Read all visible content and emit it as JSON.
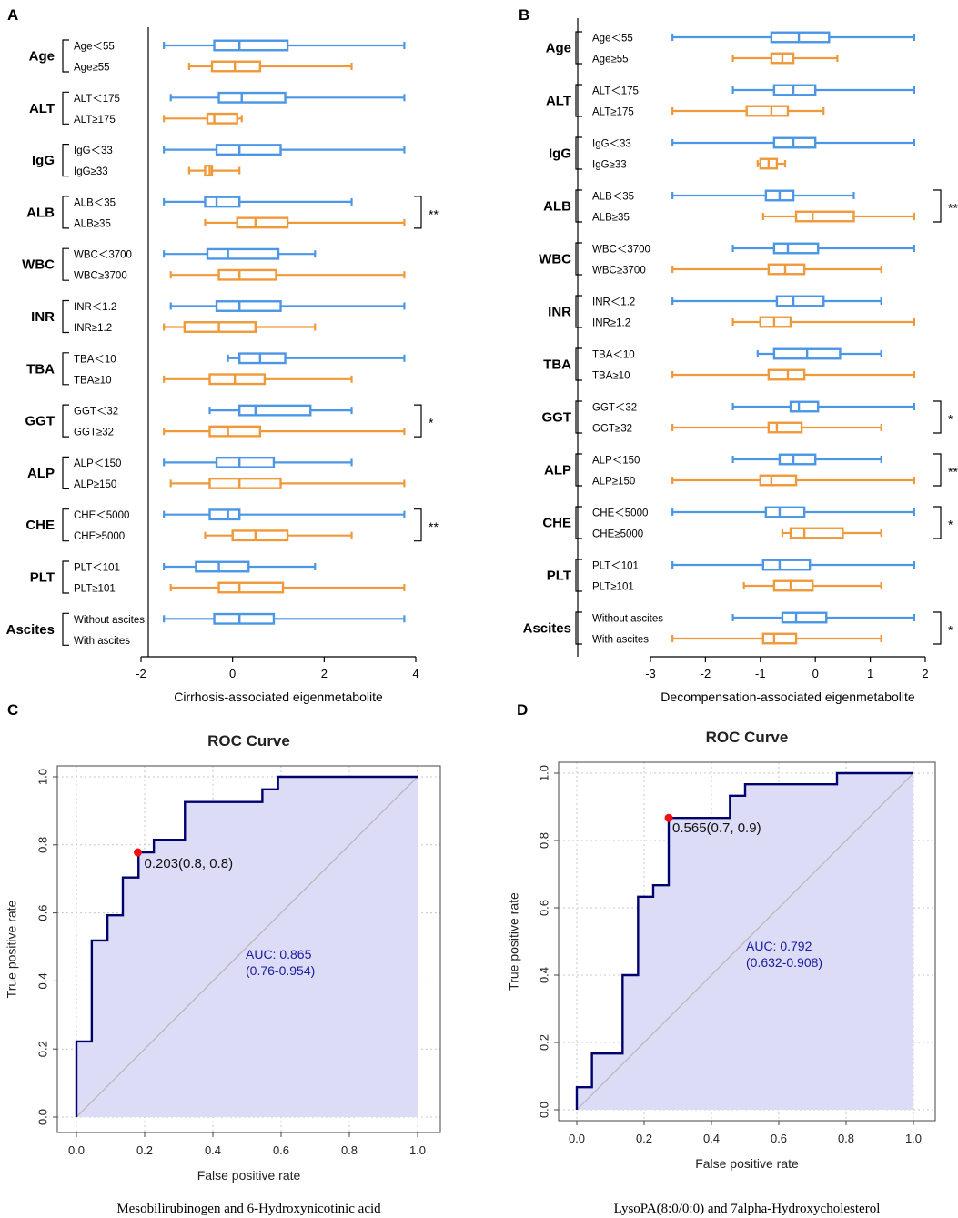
{
  "colors": {
    "group1": "#4c96e6",
    "group2": "#f0993a",
    "roc_line": "#00006e",
    "roc_fill": "#dcdcf6",
    "cut_point": "#ee1111"
  },
  "chart_data": [
    {
      "id": "A",
      "type": "boxplot",
      "panel_label": "A",
      "xlabel": "Cirrhosis-associated eigenmetabolite",
      "xlim": [
        -2,
        4
      ],
      "xticks": [
        -2,
        0,
        2,
        4
      ],
      "variables": [
        {
          "name": "Age",
          "groups": [
            {
              "label": "Age＜55",
              "stats": [
                -1.5,
                -0.4,
                0.15,
                1.2,
                3.75
              ]
            },
            {
              "label": "Age≥55",
              "stats": [
                -0.95,
                -0.45,
                0.05,
                0.6,
                2.6
              ]
            }
          ],
          "sig": ""
        },
        {
          "name": "ALT",
          "groups": [
            {
              "label": "ALT＜175",
              "stats": [
                -1.35,
                -0.3,
                0.2,
                1.15,
                3.75
              ]
            },
            {
              "label": "ALT≥175",
              "stats": [
                -1.5,
                -0.55,
                -0.4,
                0.1,
                0.2
              ]
            }
          ],
          "sig": ""
        },
        {
          "name": "IgG",
          "groups": [
            {
              "label": "IgG＜33",
              "stats": [
                -1.5,
                -0.35,
                0.15,
                1.05,
                3.75
              ]
            },
            {
              "label": "IgG≥33",
              "stats": [
                -0.95,
                -0.6,
                -0.5,
                -0.45,
                0.15
              ]
            }
          ],
          "sig": ""
        },
        {
          "name": "ALB",
          "groups": [
            {
              "label": "ALB＜35",
              "stats": [
                -1.5,
                -0.6,
                -0.35,
                0.15,
                2.6
              ]
            },
            {
              "label": "ALB≥35",
              "stats": [
                -0.6,
                0.1,
                0.5,
                1.2,
                3.75
              ]
            }
          ],
          "sig": "**"
        },
        {
          "name": "WBC",
          "groups": [
            {
              "label": "WBC＜3700",
              "stats": [
                -1.5,
                -0.55,
                -0.1,
                1.0,
                1.8
              ]
            },
            {
              "label": "WBC≥3700",
              "stats": [
                -1.35,
                -0.3,
                0.15,
                0.95,
                3.75
              ]
            }
          ],
          "sig": ""
        },
        {
          "name": "INR",
          "groups": [
            {
              "label": "INR＜1.2",
              "stats": [
                -1.35,
                -0.35,
                0.15,
                1.05,
                3.75
              ]
            },
            {
              "label": "INR≥1.2",
              "stats": [
                -1.5,
                -1.05,
                -0.3,
                0.5,
                1.8
              ]
            }
          ],
          "sig": ""
        },
        {
          "name": "TBA",
          "groups": [
            {
              "label": "TBA＜10",
              "stats": [
                -0.1,
                0.15,
                0.6,
                1.15,
                3.75
              ]
            },
            {
              "label": "TBA≥10",
              "stats": [
                -1.5,
                -0.5,
                0.05,
                0.7,
                2.6
              ]
            }
          ],
          "sig": ""
        },
        {
          "name": "GGT",
          "groups": [
            {
              "label": "GGT＜32",
              "stats": [
                -0.5,
                0.15,
                0.5,
                1.7,
                2.6
              ]
            },
            {
              "label": "GGT≥32",
              "stats": [
                -1.5,
                -0.5,
                -0.1,
                0.6,
                3.75
              ]
            }
          ],
          "sig": "*"
        },
        {
          "name": "ALP",
          "groups": [
            {
              "label": "ALP＜150",
              "stats": [
                -1.5,
                -0.35,
                0.15,
                0.9,
                2.6
              ]
            },
            {
              "label": "ALP≥150",
              "stats": [
                -1.35,
                -0.5,
                0.15,
                1.05,
                3.75
              ]
            }
          ],
          "sig": ""
        },
        {
          "name": "CHE",
          "groups": [
            {
              "label": "CHE＜5000",
              "stats": [
                -1.5,
                -0.5,
                -0.1,
                0.15,
                3.75
              ]
            },
            {
              "label": "CHE≥5000",
              "stats": [
                -0.6,
                0.0,
                0.5,
                1.2,
                2.6
              ]
            }
          ],
          "sig": "**"
        },
        {
          "name": "PLT",
          "groups": [
            {
              "label": "PLT＜101",
              "stats": [
                -1.5,
                -0.8,
                -0.3,
                0.35,
                1.8
              ]
            },
            {
              "label": "PLT≥101",
              "stats": [
                -1.35,
                -0.3,
                0.15,
                1.1,
                3.75
              ]
            }
          ],
          "sig": ""
        },
        {
          "name": "Ascites",
          "groups": [
            {
              "label": "Without ascites",
              "stats": [
                -1.5,
                -0.4,
                0.15,
                0.9,
                3.75
              ]
            },
            {
              "label": "With ascites",
              "stats": null
            }
          ],
          "sig": ""
        }
      ]
    },
    {
      "id": "B",
      "type": "boxplot",
      "panel_label": "B",
      "xlabel": "Decompensation-associated eigenmetabolite",
      "xlim": [
        -3,
        2
      ],
      "xticks": [
        -3,
        -2,
        -1,
        0,
        1,
        2
      ],
      "variables": [
        {
          "name": "Age",
          "groups": [
            {
              "label": "Age＜55",
              "stats": [
                -2.6,
                -0.8,
                -0.3,
                0.25,
                1.8
              ]
            },
            {
              "label": "Age≥55",
              "stats": [
                -1.5,
                -0.8,
                -0.6,
                -0.4,
                0.4
              ]
            }
          ],
          "sig": ""
        },
        {
          "name": "ALT",
          "groups": [
            {
              "label": "ALT＜175",
              "stats": [
                -1.5,
                -0.75,
                -0.4,
                0.0,
                1.8
              ]
            },
            {
              "label": "ALT≥175",
              "stats": [
                -2.6,
                -1.25,
                -0.8,
                -0.5,
                0.15
              ]
            }
          ],
          "sig": ""
        },
        {
          "name": "IgG",
          "groups": [
            {
              "label": "IgG＜33",
              "stats": [
                -2.6,
                -0.75,
                -0.4,
                0.0,
                1.8
              ]
            },
            {
              "label": "IgG≥33",
              "stats": [
                -1.05,
                -1.0,
                -0.85,
                -0.7,
                -0.55
              ]
            }
          ],
          "sig": ""
        },
        {
          "name": "ALB",
          "groups": [
            {
              "label": "ALB＜35",
              "stats": [
                -2.6,
                -0.9,
                -0.65,
                -0.4,
                0.7
              ]
            },
            {
              "label": "ALB≥35",
              "stats": [
                -0.95,
                -0.35,
                -0.05,
                0.7,
                1.8
              ]
            }
          ],
          "sig": "**"
        },
        {
          "name": "WBC",
          "groups": [
            {
              "label": "WBC＜3700",
              "stats": [
                -1.5,
                -0.75,
                -0.5,
                0.05,
                1.8
              ]
            },
            {
              "label": "WBC≥3700",
              "stats": [
                -2.6,
                -0.85,
                -0.55,
                -0.2,
                1.2
              ]
            }
          ],
          "sig": ""
        },
        {
          "name": "INR",
          "groups": [
            {
              "label": "INR＜1.2",
              "stats": [
                -2.6,
                -0.7,
                -0.4,
                0.15,
                1.2
              ]
            },
            {
              "label": "INR≥1.2",
              "stats": [
                -1.5,
                -1.0,
                -0.75,
                -0.45,
                1.8
              ]
            }
          ],
          "sig": ""
        },
        {
          "name": "TBA",
          "groups": [
            {
              "label": "TBA＜10",
              "stats": [
                -1.05,
                -0.75,
                -0.15,
                0.45,
                1.2
              ]
            },
            {
              "label": "TBA≥10",
              "stats": [
                -2.6,
                -0.85,
                -0.5,
                -0.2,
                1.8
              ]
            }
          ],
          "sig": ""
        },
        {
          "name": "GGT",
          "groups": [
            {
              "label": "GGT＜32",
              "stats": [
                -1.5,
                -0.45,
                -0.3,
                0.05,
                1.8
              ]
            },
            {
              "label": "GGT≥32",
              "stats": [
                -2.6,
                -0.85,
                -0.7,
                -0.25,
                1.2
              ]
            }
          ],
          "sig": "*"
        },
        {
          "name": "ALP",
          "groups": [
            {
              "label": "ALP＜150",
              "stats": [
                -1.5,
                -0.65,
                -0.4,
                0.0,
                1.2
              ]
            },
            {
              "label": "ALP≥150",
              "stats": [
                -2.6,
                -1.0,
                -0.8,
                -0.35,
                1.8
              ]
            }
          ],
          "sig": "**"
        },
        {
          "name": "CHE",
          "groups": [
            {
              "label": "CHE＜5000",
              "stats": [
                -2.6,
                -0.9,
                -0.65,
                -0.2,
                1.8
              ]
            },
            {
              "label": "CHE≥5000",
              "stats": [
                -0.6,
                -0.45,
                -0.2,
                0.5,
                1.2
              ]
            }
          ],
          "sig": "*"
        },
        {
          "name": "PLT",
          "groups": [
            {
              "label": "PLT＜101",
              "stats": [
                -2.6,
                -0.95,
                -0.65,
                -0.1,
                1.8
              ]
            },
            {
              "label": "PLT≥101",
              "stats": [
                -1.3,
                -0.75,
                -0.45,
                -0.05,
                1.2
              ]
            }
          ],
          "sig": ""
        },
        {
          "name": "Ascites",
          "groups": [
            {
              "label": "Without ascites",
              "stats": [
                -1.5,
                -0.6,
                -0.35,
                0.2,
                1.8
              ]
            },
            {
              "label": "With ascites",
              "stats": [
                -2.6,
                -0.95,
                -0.75,
                -0.35,
                1.2
              ]
            }
          ],
          "sig": "*"
        }
      ]
    },
    {
      "id": "C",
      "type": "line",
      "panel_label": "C",
      "title": "ROC Curve",
      "xlabel": "False positive rate",
      "ylabel": "True positive rate",
      "xlim": [
        0,
        1
      ],
      "ylim": [
        0,
        1
      ],
      "xticks": [
        "0.0",
        "0.2",
        "0.4",
        "0.6",
        "0.8",
        "1.0"
      ],
      "yticks": [
        "0.0",
        "0.2",
        "0.4",
        "0.6",
        "0.8",
        "1.0"
      ],
      "roc_points": [
        [
          0,
          0
        ],
        [
          0,
          0.222
        ],
        [
          0.045,
          0.222
        ],
        [
          0.045,
          0.519
        ],
        [
          0.091,
          0.519
        ],
        [
          0.091,
          0.593
        ],
        [
          0.136,
          0.593
        ],
        [
          0.136,
          0.704
        ],
        [
          0.182,
          0.704
        ],
        [
          0.182,
          0.778
        ],
        [
          0.227,
          0.778
        ],
        [
          0.227,
          0.815
        ],
        [
          0.318,
          0.815
        ],
        [
          0.318,
          0.926
        ],
        [
          0.545,
          0.926
        ],
        [
          0.545,
          0.963
        ],
        [
          0.591,
          0.963
        ],
        [
          0.591,
          1.0
        ],
        [
          1.0,
          1.0
        ]
      ],
      "cut_point": [
        0.18,
        0.778
      ],
      "cut_label": "0.203(0.8, 0.8)",
      "auc_label": "AUC: 0.865",
      "ci_label": "(0.76-0.954)",
      "caption": "Mesobilirubinogen and 6-Hydroxynicotinic acid"
    },
    {
      "id": "D",
      "type": "line",
      "panel_label": "D",
      "title": "ROC Curve",
      "xlabel": "False positive rate",
      "ylabel": "True positive rate",
      "xlim": [
        0,
        1
      ],
      "ylim": [
        0,
        1
      ],
      "xticks": [
        "0.0",
        "0.2",
        "0.4",
        "0.6",
        "0.8",
        "1.0"
      ],
      "yticks": [
        "0.0",
        "0.2",
        "0.4",
        "0.6",
        "0.8",
        "1.0"
      ],
      "roc_points": [
        [
          0,
          0
        ],
        [
          0,
          0.067
        ],
        [
          0.045,
          0.067
        ],
        [
          0.045,
          0.167
        ],
        [
          0.136,
          0.167
        ],
        [
          0.136,
          0.4
        ],
        [
          0.182,
          0.4
        ],
        [
          0.182,
          0.633
        ],
        [
          0.227,
          0.633
        ],
        [
          0.227,
          0.667
        ],
        [
          0.273,
          0.667
        ],
        [
          0.273,
          0.867
        ],
        [
          0.455,
          0.867
        ],
        [
          0.455,
          0.933
        ],
        [
          0.5,
          0.933
        ],
        [
          0.5,
          0.967
        ],
        [
          0.773,
          0.967
        ],
        [
          0.773,
          1.0
        ],
        [
          1.0,
          1.0
        ]
      ],
      "cut_point": [
        0.273,
        0.867
      ],
      "cut_label": "0.565(0.7, 0.9)",
      "auc_label": "AUC: 0.792",
      "ci_label": "(0.632-0.908)",
      "caption": "LysoPA(8:0/0:0) and 7alpha-Hydroxycholesterol"
    }
  ]
}
